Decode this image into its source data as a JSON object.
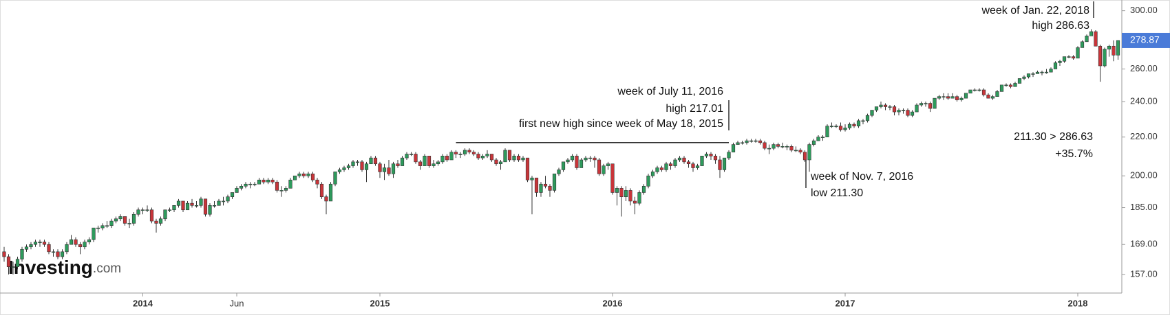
{
  "chart_data": {
    "type": "candlestick",
    "log_scale": true,
    "up_color": "#2e9a5c",
    "down_color": "#c8353a",
    "ylim": [
      150,
      308
    ],
    "yticks": [
      {
        "value": 157,
        "label": "157.00"
      },
      {
        "value": 169,
        "label": "169.00"
      },
      {
        "value": 185,
        "label": "185.00"
      },
      {
        "value": 200,
        "label": "200.00"
      },
      {
        "value": 220,
        "label": "220.00"
      },
      {
        "value": 240,
        "label": "240.00"
      },
      {
        "value": 260,
        "label": "260.00"
      },
      {
        "value": 300,
        "label": "300.00"
      }
    ],
    "xticks": [
      {
        "value": 31,
        "label": "2014"
      },
      {
        "value": 52,
        "label": "Jun"
      },
      {
        "value": 84,
        "label": "2015"
      },
      {
        "value": 136,
        "label": "2016"
      },
      {
        "value": 188,
        "label": "2017"
      },
      {
        "value": 240,
        "label": "2018"
      }
    ],
    "last_price": {
      "value": 278.87,
      "label": "278.87"
    },
    "hline": 217.01,
    "watermark": {
      "brand": "Investing",
      "suffix": ".com"
    },
    "annotations": [
      {
        "lines": [
          "week of Jan. 22, 2018",
          "high 286.63"
        ]
      },
      {
        "lines": [
          "week of July 11, 2016",
          "high 217.01",
          "first new high since week of May 18, 2015"
        ]
      },
      {
        "lines": [
          "week of Nov. 7, 2016",
          "low 211.30"
        ]
      },
      {
        "lines": [
          "211.30 > 286.63",
          "+35.7%"
        ]
      }
    ],
    "ohlc": [
      [
        166,
        168,
        162,
        164
      ],
      [
        164,
        165,
        157,
        160
      ],
      [
        160,
        162,
        157,
        160
      ],
      [
        160,
        164,
        159,
        163
      ],
      [
        163,
        168,
        162,
        167
      ],
      [
        167,
        169,
        166,
        168
      ],
      [
        168,
        170,
        167,
        169
      ],
      [
        169,
        171,
        168,
        170
      ],
      [
        170,
        171,
        168,
        170
      ],
      [
        170,
        171,
        168,
        169
      ],
      [
        169,
        170,
        165,
        166
      ],
      [
        166,
        167,
        164,
        166
      ],
      [
        166,
        167,
        163,
        164
      ],
      [
        164,
        167,
        163,
        166
      ],
      [
        166,
        170,
        165,
        169
      ],
      [
        169,
        173,
        169,
        171
      ],
      [
        171,
        172,
        168,
        169
      ],
      [
        169,
        170,
        165,
        168
      ],
      [
        168,
        171,
        167,
        170
      ],
      [
        170,
        172,
        169,
        171
      ],
      [
        171,
        176,
        170,
        176
      ],
      [
        176,
        177,
        174,
        176
      ],
      [
        176,
        178,
        175,
        177
      ],
      [
        177,
        179,
        176,
        177
      ],
      [
        177,
        180,
        176,
        179
      ],
      [
        179,
        181,
        178,
        180
      ],
      [
        180,
        182,
        179,
        181
      ],
      [
        181,
        181,
        177,
        178
      ],
      [
        178,
        180,
        176,
        178
      ],
      [
        178,
        183,
        177,
        182
      ],
      [
        182,
        185,
        181,
        184
      ],
      [
        184,
        185,
        182,
        184
      ],
      [
        184,
        186,
        183,
        184
      ],
      [
        184,
        185,
        178,
        179
      ],
      [
        179,
        180,
        174,
        178
      ],
      [
        178,
        181,
        177,
        180
      ],
      [
        180,
        184,
        179,
        184
      ],
      [
        184,
        185,
        183,
        184
      ],
      [
        184,
        186,
        183,
        186
      ],
      [
        186,
        189,
        185,
        188
      ],
      [
        188,
        188,
        183,
        184
      ],
      [
        184,
        188,
        184,
        187
      ],
      [
        187,
        189,
        185,
        186
      ],
      [
        186,
        188,
        185,
        186
      ],
      [
        186,
        190,
        185,
        189
      ],
      [
        189,
        189,
        181,
        182
      ],
      [
        182,
        187,
        181,
        186
      ],
      [
        186,
        188,
        185,
        186
      ],
      [
        186,
        189,
        186,
        188
      ],
      [
        188,
        190,
        186,
        188
      ],
      [
        188,
        191,
        187,
        190
      ],
      [
        190,
        192,
        189,
        192
      ],
      [
        192,
        195,
        192,
        194
      ],
      [
        194,
        196,
        193,
        195
      ],
      [
        195,
        197,
        194,
        196
      ],
      [
        196,
        197,
        194,
        196
      ],
      [
        196,
        197,
        195,
        196
      ],
      [
        196,
        199,
        196,
        198
      ],
      [
        198,
        199,
        196,
        197
      ],
      [
        197,
        199,
        196,
        198
      ],
      [
        198,
        199,
        196,
        197
      ],
      [
        197,
        198,
        192,
        193
      ],
      [
        193,
        195,
        190,
        193
      ],
      [
        193,
        195,
        192,
        194
      ],
      [
        194,
        199,
        194,
        198
      ],
      [
        198,
        200,
        198,
        200
      ],
      [
        200,
        202,
        199,
        201
      ],
      [
        201,
        202,
        199,
        200
      ],
      [
        200,
        202,
        199,
        201
      ],
      [
        201,
        202,
        197,
        198
      ],
      [
        198,
        199,
        194,
        196
      ],
      [
        196,
        197,
        189,
        190
      ],
      [
        190,
        191,
        182,
        188
      ],
      [
        188,
        197,
        188,
        196
      ],
      [
        196,
        202,
        195,
        202
      ],
      [
        202,
        204,
        201,
        203
      ],
      [
        203,
        205,
        202,
        204
      ],
      [
        204,
        206,
        203,
        205
      ],
      [
        205,
        208,
        204,
        207
      ],
      [
        207,
        208,
        205,
        207
      ],
      [
        207,
        208,
        202,
        203
      ],
      [
        203,
        207,
        197,
        206
      ],
      [
        206,
        210,
        206,
        209
      ],
      [
        209,
        210,
        205,
        206
      ],
      [
        206,
        207,
        199,
        202
      ],
      [
        202,
        206,
        198,
        204
      ],
      [
        204,
        208,
        200,
        201
      ],
      [
        201,
        207,
        199,
        206
      ],
      [
        206,
        208,
        204,
        205
      ],
      [
        205,
        210,
        205,
        209
      ],
      [
        209,
        212,
        208,
        211
      ],
      [
        211,
        212,
        210,
        211
      ],
      [
        211,
        212,
        206,
        207
      ],
      [
        207,
        208,
        203,
        205
      ],
      [
        205,
        211,
        205,
        210
      ],
      [
        210,
        210,
        204,
        205
      ],
      [
        205,
        208,
        204,
        206
      ],
      [
        206,
        208,
        205,
        207
      ],
      [
        207,
        211,
        206,
        210
      ],
      [
        210,
        211,
        207,
        208
      ],
      [
        208,
        213,
        208,
        212
      ],
      [
        212,
        213,
        209,
        211
      ],
      [
        211,
        212,
        209,
        211
      ],
      [
        211,
        214,
        210,
        213
      ],
      [
        213,
        214,
        211,
        212
      ],
      [
        212,
        213,
        210,
        211
      ],
      [
        211,
        212,
        208,
        209
      ],
      [
        209,
        211,
        208,
        210
      ],
      [
        210,
        213,
        209,
        211
      ],
      [
        211,
        211,
        207,
        208
      ],
      [
        208,
        209,
        205,
        206
      ],
      [
        206,
        208,
        203,
        207
      ],
      [
        207,
        214,
        207,
        213
      ],
      [
        213,
        213,
        207,
        208
      ],
      [
        208,
        211,
        207,
        210
      ],
      [
        210,
        211,
        207,
        208
      ],
      [
        208,
        210,
        207,
        209
      ],
      [
        209,
        209,
        197,
        198
      ],
      [
        198,
        200,
        182,
        199
      ],
      [
        199,
        199,
        190,
        192
      ],
      [
        192,
        197,
        190,
        196
      ],
      [
        196,
        200,
        194,
        195
      ],
      [
        195,
        196,
        190,
        193
      ],
      [
        193,
        201,
        192,
        201
      ],
      [
        201,
        204,
        200,
        203
      ],
      [
        203,
        207,
        202,
        207
      ],
      [
        207,
        209,
        206,
        208
      ],
      [
        208,
        211,
        207,
        210
      ],
      [
        210,
        211,
        203,
        204
      ],
      [
        204,
        209,
        204,
        208
      ],
      [
        208,
        210,
        207,
        209
      ],
      [
        209,
        210,
        207,
        209
      ],
      [
        209,
        210,
        204,
        208
      ],
      [
        208,
        209,
        200,
        201
      ],
      [
        201,
        206,
        200,
        205
      ],
      [
        205,
        207,
        203,
        206
      ],
      [
        206,
        206,
        191,
        192
      ],
      [
        192,
        195,
        186,
        194
      ],
      [
        194,
        195,
        181,
        190
      ],
      [
        190,
        195,
        188,
        193
      ],
      [
        193,
        194,
        186,
        188
      ],
      [
        188,
        190,
        182,
        187
      ],
      [
        187,
        193,
        186,
        192
      ],
      [
        192,
        196,
        191,
        195
      ],
      [
        195,
        201,
        194,
        200
      ],
      [
        200,
        203,
        199,
        202
      ],
      [
        202,
        205,
        201,
        204
      ],
      [
        204,
        205,
        202,
        203
      ],
      [
        203,
        207,
        202,
        206
      ],
      [
        206,
        207,
        203,
        205
      ],
      [
        205,
        209,
        204,
        208
      ],
      [
        208,
        210,
        207,
        209
      ],
      [
        209,
        210,
        206,
        207
      ],
      [
        207,
        208,
        204,
        206
      ],
      [
        206,
        207,
        202,
        204
      ],
      [
        204,
        206,
        203,
        205
      ],
      [
        205,
        210,
        205,
        210
      ],
      [
        210,
        212,
        209,
        211
      ],
      [
        211,
        212,
        208,
        210
      ],
      [
        210,
        211,
        206,
        208
      ],
      [
        208,
        210,
        199,
        203
      ],
      [
        203,
        209,
        202,
        209
      ],
      [
        209,
        213,
        208,
        212
      ],
      [
        212,
        217,
        212,
        216
      ],
      [
        216,
        218,
        216,
        217
      ],
      [
        217,
        218,
        216,
        217
      ],
      [
        217,
        219,
        216,
        218
      ],
      [
        218,
        219,
        217,
        218
      ],
      [
        218,
        219,
        217,
        218
      ],
      [
        218,
        219,
        216,
        217
      ],
      [
        217,
        218,
        213,
        214
      ],
      [
        214,
        216,
        211,
        214
      ],
      [
        214,
        217,
        213,
        216
      ],
      [
        216,
        217,
        214,
        215
      ],
      [
        215,
        217,
        214,
        215
      ],
      [
        215,
        216,
        213,
        215
      ],
      [
        215,
        216,
        212,
        213
      ],
      [
        213,
        215,
        212,
        213
      ],
      [
        213,
        214,
        211,
        212
      ],
      [
        212,
        213,
        207,
        208
      ],
      [
        208,
        217,
        202,
        216
      ],
      [
        216,
        219,
        215,
        218
      ],
      [
        218,
        221,
        218,
        220
      ],
      [
        220,
        221,
        218,
        220
      ],
      [
        220,
        227,
        220,
        226
      ],
      [
        226,
        228,
        225,
        226
      ],
      [
        226,
        227,
        225,
        226
      ],
      [
        226,
        228,
        223,
        224
      ],
      [
        224,
        227,
        223,
        225
      ],
      [
        225,
        228,
        224,
        227
      ],
      [
        227,
        228,
        225,
        226
      ],
      [
        226,
        230,
        225,
        229
      ],
      [
        229,
        230,
        227,
        229
      ],
      [
        229,
        233,
        228,
        232
      ],
      [
        232,
        235,
        231,
        235
      ],
      [
        235,
        237,
        234,
        237
      ],
      [
        237,
        240,
        236,
        238
      ],
      [
        238,
        239,
        235,
        237
      ],
      [
        237,
        238,
        235,
        237
      ],
      [
        237,
        238,
        232,
        234
      ],
      [
        234,
        236,
        232,
        235
      ],
      [
        235,
        236,
        233,
        235
      ],
      [
        235,
        236,
        231,
        232
      ],
      [
        232,
        235,
        231,
        234
      ],
      [
        234,
        239,
        234,
        238
      ],
      [
        238,
        240,
        237,
        239
      ],
      [
        239,
        240,
        237,
        239
      ],
      [
        239,
        240,
        234,
        236
      ],
      [
        236,
        242,
        236,
        242
      ],
      [
        242,
        244,
        241,
        243
      ],
      [
        243,
        245,
        241,
        243
      ],
      [
        243,
        245,
        241,
        242
      ],
      [
        242,
        245,
        242,
        243
      ],
      [
        243,
        244,
        240,
        241
      ],
      [
        241,
        243,
        240,
        242
      ],
      [
        242,
        245,
        242,
        245
      ],
      [
        245,
        247,
        245,
        247
      ],
      [
        247,
        248,
        246,
        247
      ],
      [
        247,
        248,
        246,
        247
      ],
      [
        247,
        248,
        243,
        244
      ],
      [
        244,
        245,
        242,
        242
      ],
      [
        242,
        244,
        241,
        243
      ],
      [
        243,
        247,
        243,
        246
      ],
      [
        246,
        250,
        246,
        250
      ],
      [
        250,
        251,
        249,
        250
      ],
      [
        250,
        251,
        248,
        249
      ],
      [
        249,
        252,
        249,
        251
      ],
      [
        251,
        254,
        251,
        254
      ],
      [
        254,
        256,
        253,
        255
      ],
      [
        255,
        257,
        254,
        257
      ],
      [
        257,
        258,
        255,
        257
      ],
      [
        257,
        259,
        257,
        258
      ],
      [
        258,
        259,
        256,
        258
      ],
      [
        258,
        260,
        257,
        258
      ],
      [
        258,
        261,
        258,
        260
      ],
      [
        260,
        265,
        260,
        264
      ],
      [
        264,
        266,
        262,
        265
      ],
      [
        265,
        268,
        264,
        268
      ],
      [
        268,
        269,
        267,
        268
      ],
      [
        268,
        269,
        266,
        267
      ],
      [
        267,
        275,
        267,
        274
      ],
      [
        274,
        279,
        274,
        278
      ],
      [
        278,
        283,
        278,
        282
      ],
      [
        282,
        286.63,
        282,
        285
      ],
      [
        285,
        286,
        275,
        275
      ],
      [
        275,
        276,
        252,
        262
      ],
      [
        262,
        274,
        261,
        273
      ],
      [
        273,
        276,
        268,
        275
      ],
      [
        275,
        279,
        265,
        269
      ],
      [
        269,
        279,
        266,
        278.87
      ]
    ]
  }
}
